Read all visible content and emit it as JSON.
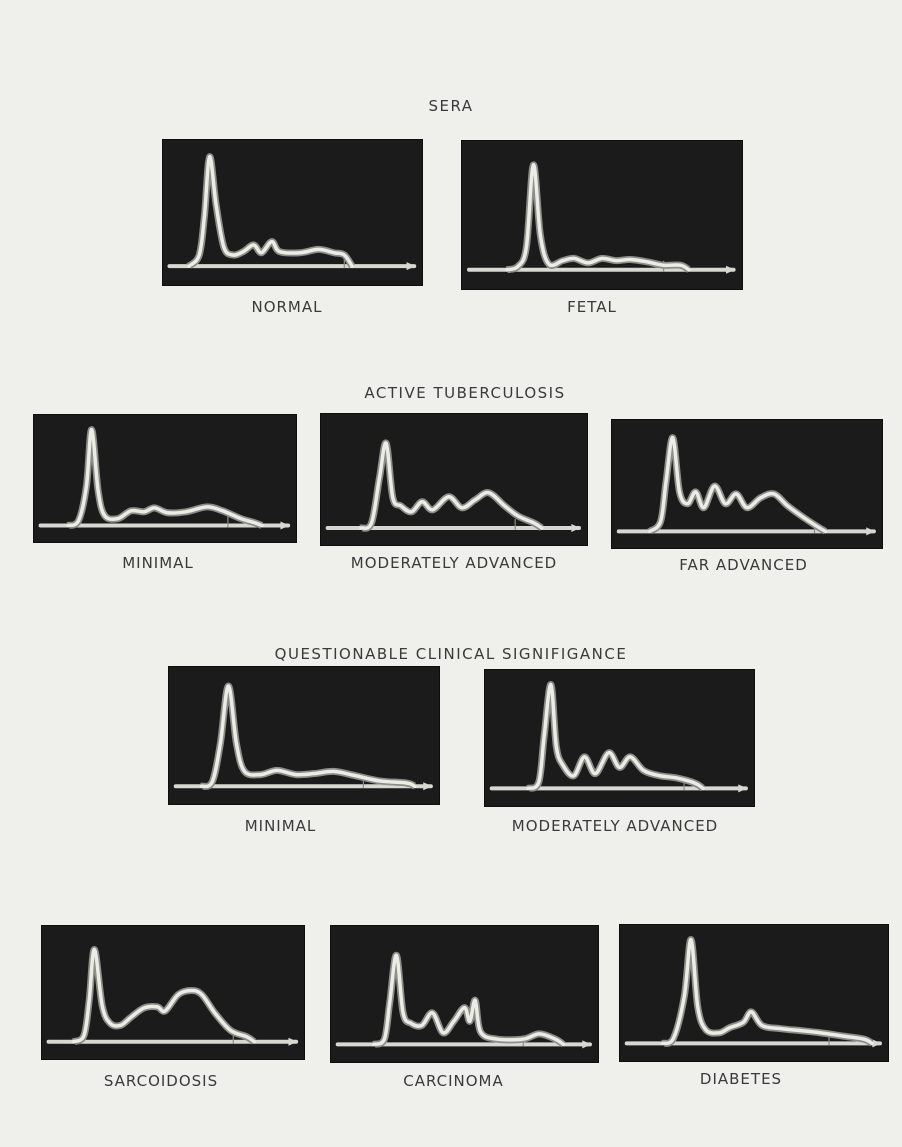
{
  "headings": {
    "sera": "SERA",
    "active_tb": "ACTIVE  TUBERCULOSIS",
    "questionable": "QUESTIONABLE  CLINICAL  SIGNIFIGANCE"
  },
  "panels": [
    {
      "caption": "NORMAL",
      "trace": [
        [
          0.14,
          0.1
        ],
        [
          0.16,
          0.45
        ],
        [
          0.18,
          0.98
        ],
        [
          0.205,
          0.55
        ],
        [
          0.235,
          0.17
        ],
        [
          0.27,
          0.1
        ],
        [
          0.31,
          0.13
        ],
        [
          0.35,
          0.19
        ],
        [
          0.38,
          0.12
        ],
        [
          0.42,
          0.22
        ],
        [
          0.45,
          0.13
        ],
        [
          0.53,
          0.12
        ],
        [
          0.6,
          0.15
        ],
        [
          0.66,
          0.12
        ],
        [
          0.7,
          0.1
        ]
      ],
      "marker": 0.7
    },
    {
      "caption": "FETAL",
      "trace": [
        [
          0.2,
          0.03
        ],
        [
          0.23,
          0.2
        ],
        [
          0.255,
          0.92
        ],
        [
          0.28,
          0.3
        ],
        [
          0.31,
          0.05
        ],
        [
          0.36,
          0.08
        ],
        [
          0.4,
          0.1
        ],
        [
          0.45,
          0.06
        ],
        [
          0.5,
          0.1
        ],
        [
          0.55,
          0.08
        ],
        [
          0.6,
          0.09
        ],
        [
          0.66,
          0.07
        ],
        [
          0.72,
          0.04
        ],
        [
          0.78,
          0.04
        ]
      ],
      "marker": 0.72
    },
    {
      "caption": "MINIMAL",
      "trace": [
        [
          0.17,
          0.05
        ],
        [
          0.2,
          0.4
        ],
        [
          0.22,
          0.98
        ],
        [
          0.245,
          0.35
        ],
        [
          0.27,
          0.1
        ],
        [
          0.32,
          0.07
        ],
        [
          0.37,
          0.15
        ],
        [
          0.42,
          0.14
        ],
        [
          0.46,
          0.18
        ],
        [
          0.51,
          0.13
        ],
        [
          0.58,
          0.14
        ],
        [
          0.66,
          0.19
        ],
        [
          0.72,
          0.15
        ],
        [
          0.79,
          0.07
        ],
        [
          0.84,
          0.03
        ]
      ],
      "marker": 0.74
    },
    {
      "caption": "MODERATELY  ADVANCED",
      "trace": [
        [
          0.19,
          0.05
        ],
        [
          0.22,
          0.5
        ],
        [
          0.245,
          0.84
        ],
        [
          0.27,
          0.3
        ],
        [
          0.3,
          0.22
        ],
        [
          0.34,
          0.16
        ],
        [
          0.38,
          0.26
        ],
        [
          0.42,
          0.18
        ],
        [
          0.48,
          0.31
        ],
        [
          0.53,
          0.2
        ],
        [
          0.58,
          0.28
        ],
        [
          0.63,
          0.35
        ],
        [
          0.69,
          0.22
        ],
        [
          0.74,
          0.12
        ],
        [
          0.8,
          0.05
        ]
      ],
      "marker": 0.73
    },
    {
      "caption": "FAR  ADVANCED",
      "trace": [
        [
          0.18,
          0.1
        ],
        [
          0.2,
          0.5
        ],
        [
          0.225,
          0.95
        ],
        [
          0.25,
          0.4
        ],
        [
          0.28,
          0.28
        ],
        [
          0.31,
          0.4
        ],
        [
          0.34,
          0.24
        ],
        [
          0.38,
          0.46
        ],
        [
          0.42,
          0.28
        ],
        [
          0.46,
          0.38
        ],
        [
          0.5,
          0.24
        ],
        [
          0.55,
          0.34
        ],
        [
          0.6,
          0.38
        ],
        [
          0.65,
          0.26
        ],
        [
          0.71,
          0.14
        ],
        [
          0.76,
          0.05
        ]
      ],
      "marker": 0.75
    },
    {
      "caption": "MINIMAL",
      "trace": [
        [
          0.16,
          0.04
        ],
        [
          0.19,
          0.4
        ],
        [
          0.22,
          0.95
        ],
        [
          0.25,
          0.4
        ],
        [
          0.28,
          0.14
        ],
        [
          0.34,
          0.11
        ],
        [
          0.4,
          0.15
        ],
        [
          0.47,
          0.11
        ],
        [
          0.54,
          0.12
        ],
        [
          0.61,
          0.14
        ],
        [
          0.69,
          0.1
        ],
        [
          0.78,
          0.05
        ],
        [
          0.88,
          0.03
        ]
      ],
      "marker": 0.72
    },
    {
      "caption": "MODERATELY  ADVANCED",
      "trace": [
        [
          0.2,
          0.06
        ],
        [
          0.22,
          0.5
        ],
        [
          0.245,
          0.99
        ],
        [
          0.265,
          0.4
        ],
        [
          0.29,
          0.22
        ],
        [
          0.33,
          0.12
        ],
        [
          0.37,
          0.3
        ],
        [
          0.41,
          0.14
        ],
        [
          0.46,
          0.34
        ],
        [
          0.5,
          0.2
        ],
        [
          0.54,
          0.3
        ],
        [
          0.59,
          0.17
        ],
        [
          0.65,
          0.12
        ],
        [
          0.71,
          0.1
        ],
        [
          0.78,
          0.05
        ]
      ],
      "marker": 0.74
    },
    {
      "caption": "SARCOIDOSIS",
      "trace": [
        [
          0.16,
          0.06
        ],
        [
          0.18,
          0.4
        ],
        [
          0.2,
          0.9
        ],
        [
          0.23,
          0.35
        ],
        [
          0.26,
          0.18
        ],
        [
          0.3,
          0.16
        ],
        [
          0.34,
          0.24
        ],
        [
          0.39,
          0.33
        ],
        [
          0.44,
          0.34
        ],
        [
          0.47,
          0.3
        ],
        [
          0.52,
          0.46
        ],
        [
          0.57,
          0.5
        ],
        [
          0.61,
          0.46
        ],
        [
          0.66,
          0.28
        ],
        [
          0.72,
          0.11
        ],
        [
          0.78,
          0.05
        ]
      ],
      "marker": 0.73
    },
    {
      "caption": "CARCINOMA",
      "trace": [
        [
          0.2,
          0.05
        ],
        [
          0.22,
          0.4
        ],
        [
          0.245,
          0.85
        ],
        [
          0.27,
          0.3
        ],
        [
          0.3,
          0.2
        ],
        [
          0.34,
          0.18
        ],
        [
          0.38,
          0.3
        ],
        [
          0.42,
          0.11
        ],
        [
          0.46,
          0.22
        ],
        [
          0.5,
          0.35
        ],
        [
          0.52,
          0.22
        ],
        [
          0.54,
          0.42
        ],
        [
          0.56,
          0.12
        ],
        [
          0.62,
          0.05
        ],
        [
          0.72,
          0.05
        ],
        [
          0.78,
          0.1
        ],
        [
          0.84,
          0.05
        ]
      ],
      "marker": 0.72
    },
    {
      "caption": "DIABETES",
      "trace": [
        [
          0.2,
          0.05
        ],
        [
          0.24,
          0.45
        ],
        [
          0.265,
          0.99
        ],
        [
          0.29,
          0.35
        ],
        [
          0.32,
          0.13
        ],
        [
          0.37,
          0.1
        ],
        [
          0.41,
          0.15
        ],
        [
          0.46,
          0.2
        ],
        [
          0.49,
          0.3
        ],
        [
          0.53,
          0.17
        ],
        [
          0.6,
          0.14
        ],
        [
          0.68,
          0.12
        ],
        [
          0.75,
          0.1
        ],
        [
          0.83,
          0.07
        ],
        [
          0.91,
          0.04
        ]
      ],
      "marker": 0.78
    }
  ]
}
